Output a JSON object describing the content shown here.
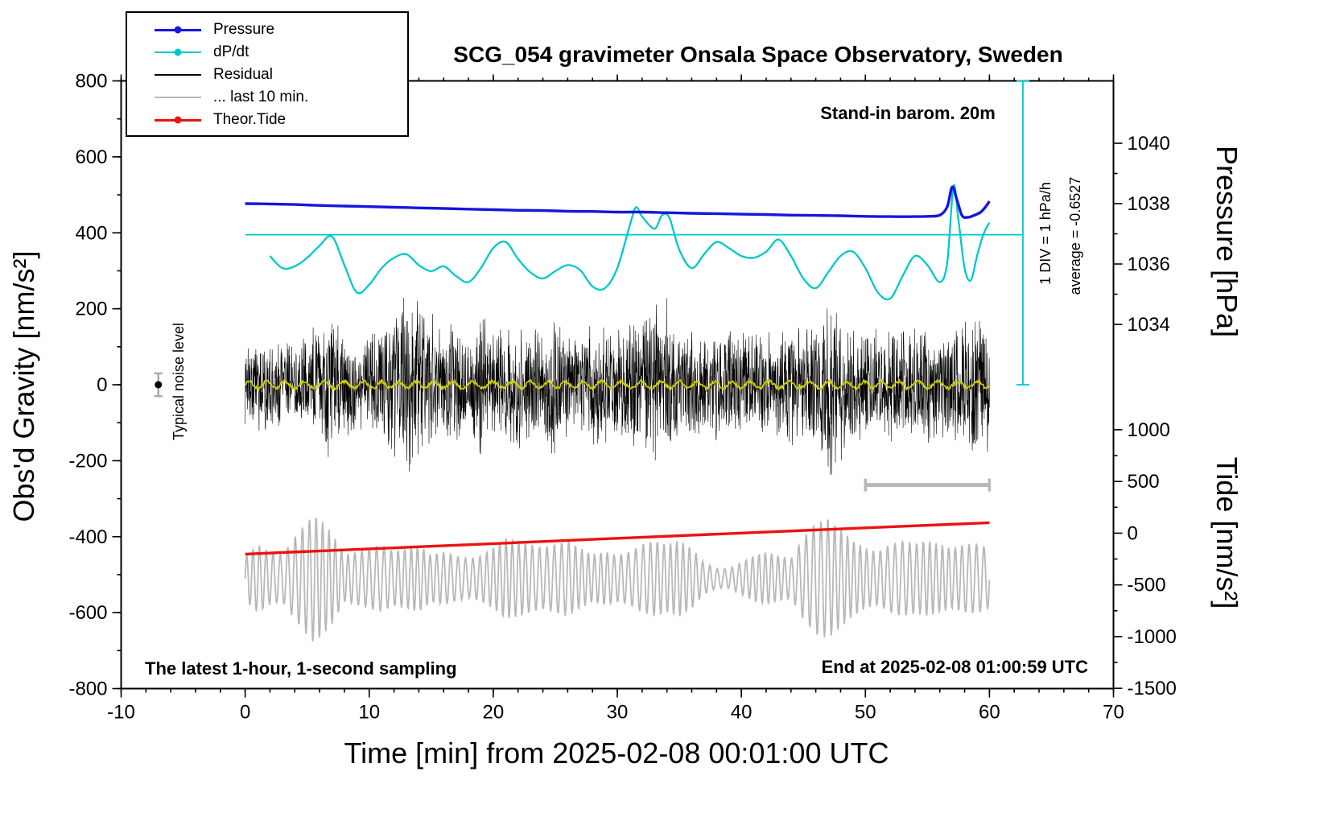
{
  "title": "SCG_054 gravimeter Onsala Space Observatory, Sweden",
  "xlabel": "Time [min] from 2025-02-08 00:01:00 UTC",
  "ylabel_left": "Obs'd Gravity [nm/s²]",
  "ylabel_pressure": "Pressure [hPa]",
  "ylabel_tide": "Tide [nm/s²]",
  "annotations": {
    "barom": "Stand-in barom. 20m",
    "div_scale": "1 DIV = 1 hPa/h",
    "average": "average = -0.6527",
    "noise_level": "Typical noise level",
    "sampling": "The latest 1-hour, 1-second sampling",
    "end_time": "End at 2025-02-08 01:00:59 UTC"
  },
  "legend": {
    "items": [
      {
        "label": "Pressure",
        "color": "#1616dd",
        "marker": true,
        "weight": 3
      },
      {
        "label": "dP/dt",
        "color": "#00c8c8",
        "marker": true,
        "weight": 2
      },
      {
        "label": "Residual",
        "color": "#000000",
        "marker": false,
        "weight": 2
      },
      {
        "label": "... last 10 min.",
        "color": "#b8b8b8",
        "marker": false,
        "weight": 2
      },
      {
        "label": "Theor.Tide",
        "color": "#ee1111",
        "marker": true,
        "weight": 3
      }
    ]
  },
  "chart_data": {
    "type": "line",
    "title": "SCG_054 gravimeter Onsala Space Observatory, Sweden",
    "xlabel": "Time [min] from 2025-02-08 00:01:00 UTC",
    "x_range": [
      -10,
      70
    ],
    "gravity_range": [
      -800,
      800
    ],
    "x_ticks": [
      -10,
      0,
      10,
      20,
      30,
      40,
      50,
      60,
      70
    ],
    "x_minor_step": 2,
    "gravity_ticks": [
      -800,
      -600,
      -400,
      -200,
      0,
      200,
      400,
      600,
      800
    ],
    "pressure_ticks": [
      1040,
      1038,
      1036,
      1034
    ],
    "pressure_minor_ticks": [
      1039,
      1037,
      1035
    ],
    "tide_ticks": [
      1000,
      500,
      0,
      -500,
      -1000,
      -1500
    ],
    "tide_minor_ticks": [
      750,
      250,
      -250,
      -750,
      -1250
    ],
    "average_dpdt_hpa_per_h": -0.6527,
    "dpdt_zero_gravity": 395,
    "dpdt_gravity_per_unit": 160,
    "dpdt_scale_bar_x": 62.7,
    "noise_seed": 20250208,
    "colors": {
      "pressure": "#1616dd",
      "dpdt": "#00c8c8",
      "residual": "#000000",
      "residual_filtered": "#cfcf00",
      "last10": "#b8b8b8",
      "tide": "#ee1111",
      "gray_bar": "#b8b8b8"
    },
    "series": {
      "pressure_hpa": [
        [
          0,
          1038.0
        ],
        [
          2,
          1037.99
        ],
        [
          4,
          1037.97
        ],
        [
          6,
          1037.94
        ],
        [
          8,
          1037.92
        ],
        [
          10,
          1037.9
        ],
        [
          12,
          1037.88
        ],
        [
          14,
          1037.86
        ],
        [
          16,
          1037.84
        ],
        [
          18,
          1037.82
        ],
        [
          20,
          1037.8
        ],
        [
          22,
          1037.78
        ],
        [
          24,
          1037.77
        ],
        [
          26,
          1037.75
        ],
        [
          28,
          1037.74
        ],
        [
          30,
          1037.72
        ],
        [
          32,
          1037.72
        ],
        [
          34,
          1037.7
        ],
        [
          36,
          1037.68
        ],
        [
          38,
          1037.67
        ],
        [
          40,
          1037.65
        ],
        [
          42,
          1037.64
        ],
        [
          44,
          1037.62
        ],
        [
          46,
          1037.61
        ],
        [
          48,
          1037.6
        ],
        [
          50,
          1037.58
        ],
        [
          52,
          1037.57
        ],
        [
          54,
          1037.57
        ],
        [
          55,
          1037.58
        ],
        [
          56,
          1037.62
        ],
        [
          56.6,
          1037.9
        ],
        [
          57,
          1038.55
        ],
        [
          57.4,
          1038.1
        ],
        [
          57.8,
          1037.6
        ],
        [
          58.3,
          1037.55
        ],
        [
          58.8,
          1037.62
        ],
        [
          59.3,
          1037.72
        ],
        [
          59.7,
          1037.9
        ],
        [
          60,
          1038.08
        ]
      ],
      "dpdt_hpa_per_h": [
        [
          2,
          -0.35
        ],
        [
          3,
          -0.55
        ],
        [
          4,
          -0.52
        ],
        [
          5,
          -0.38
        ],
        [
          6,
          -0.18
        ],
        [
          7,
          -0.03
        ],
        [
          8,
          -0.5
        ],
        [
          9,
          -0.95
        ],
        [
          10,
          -0.82
        ],
        [
          11,
          -0.55
        ],
        [
          12,
          -0.38
        ],
        [
          13,
          -0.32
        ],
        [
          14,
          -0.5
        ],
        [
          15,
          -0.6
        ],
        [
          16,
          -0.52
        ],
        [
          17,
          -0.68
        ],
        [
          18,
          -0.78
        ],
        [
          19,
          -0.55
        ],
        [
          20,
          -0.22
        ],
        [
          21,
          -0.12
        ],
        [
          22,
          -0.4
        ],
        [
          23,
          -0.62
        ],
        [
          24,
          -0.72
        ],
        [
          25,
          -0.6
        ],
        [
          26,
          -0.5
        ],
        [
          27,
          -0.58
        ],
        [
          28,
          -0.85
        ],
        [
          29,
          -0.88
        ],
        [
          30,
          -0.55
        ],
        [
          31,
          0.15
        ],
        [
          31.5,
          0.45
        ],
        [
          32,
          0.3
        ],
        [
          33,
          0.1
        ],
        [
          33.6,
          0.32
        ],
        [
          34.2,
          0.28
        ],
        [
          35,
          -0.25
        ],
        [
          36,
          -0.55
        ],
        [
          37,
          -0.32
        ],
        [
          38,
          -0.12
        ],
        [
          39,
          -0.22
        ],
        [
          40,
          -0.35
        ],
        [
          41,
          -0.38
        ],
        [
          42,
          -0.28
        ],
        [
          43,
          -0.08
        ],
        [
          44,
          -0.35
        ],
        [
          45,
          -0.72
        ],
        [
          46,
          -0.88
        ],
        [
          47,
          -0.62
        ],
        [
          48,
          -0.35
        ],
        [
          49,
          -0.28
        ],
        [
          50,
          -0.55
        ],
        [
          51,
          -0.95
        ],
        [
          52,
          -1.05
        ],
        [
          53,
          -0.68
        ],
        [
          54,
          -0.35
        ],
        [
          55,
          -0.5
        ],
        [
          56,
          -0.78
        ],
        [
          56.6,
          -0.45
        ],
        [
          57.1,
          0.8
        ],
        [
          57.5,
          0.25
        ],
        [
          58,
          -0.55
        ],
        [
          58.5,
          -0.75
        ],
        [
          59,
          -0.35
        ],
        [
          59.5,
          0.0
        ],
        [
          60,
          0.2
        ]
      ],
      "theor_tide_nms2": [
        [
          0,
          -202
        ],
        [
          10,
          -152
        ],
        [
          20,
          -101
        ],
        [
          30,
          -50
        ],
        [
          40,
          1
        ],
        [
          50,
          51
        ],
        [
          60,
          101
        ]
      ],
      "residual": {
        "center": 0,
        "dt": 0.02,
        "envelope": [
          [
            0,
            115
          ],
          [
            2,
            140
          ],
          [
            4,
            130
          ],
          [
            6,
            165
          ],
          [
            7,
            225
          ],
          [
            8,
            150
          ],
          [
            10,
            140
          ],
          [
            12,
            205
          ],
          [
            13,
            275
          ],
          [
            14,
            270
          ],
          [
            15,
            195
          ],
          [
            16,
            160
          ],
          [
            17,
            170
          ],
          [
            18,
            150
          ],
          [
            19,
            225
          ],
          [
            20,
            170
          ],
          [
            21,
            150
          ],
          [
            22,
            180
          ],
          [
            23,
            160
          ],
          [
            24,
            170
          ],
          [
            25,
            215
          ],
          [
            26,
            160
          ],
          [
            27,
            150
          ],
          [
            28,
            170
          ],
          [
            29,
            160
          ],
          [
            30,
            180
          ],
          [
            31,
            200
          ],
          [
            32,
            170
          ],
          [
            33,
            230
          ],
          [
            34,
            235
          ],
          [
            35,
            180
          ],
          [
            36,
            160
          ],
          [
            37,
            150
          ],
          [
            38,
            158
          ],
          [
            39,
            150
          ],
          [
            40,
            150
          ],
          [
            41,
            140
          ],
          [
            42,
            160
          ],
          [
            43,
            150
          ],
          [
            44,
            168
          ],
          [
            45,
            160
          ],
          [
            46,
            200
          ],
          [
            47,
            285
          ],
          [
            48,
            235
          ],
          [
            49,
            160
          ],
          [
            50,
            150
          ],
          [
            51,
            160
          ],
          [
            52,
            168
          ],
          [
            53,
            150
          ],
          [
            54,
            160
          ],
          [
            55,
            168
          ],
          [
            56,
            150
          ],
          [
            57,
            140
          ],
          [
            58,
            180
          ],
          [
            59,
            200
          ],
          [
            60,
            185
          ]
        ]
      },
      "residual_filtered": {
        "amplitude": 9,
        "period": 1.5,
        "noise": 4
      },
      "last10": {
        "center": -510,
        "period": 0.55,
        "dt": 0.05,
        "envelope": [
          [
            0,
            60
          ],
          [
            1,
            90
          ],
          [
            2,
            70
          ],
          [
            3,
            62
          ],
          [
            4,
            110
          ],
          [
            5,
            150
          ],
          [
            5.5,
            168
          ],
          [
            6,
            158
          ],
          [
            7,
            120
          ],
          [
            8,
            62
          ],
          [
            9,
            70
          ],
          [
            10,
            80
          ],
          [
            11,
            88
          ],
          [
            12,
            72
          ],
          [
            13,
            80
          ],
          [
            14,
            88
          ],
          [
            15,
            62
          ],
          [
            16,
            70
          ],
          [
            17,
            60
          ],
          [
            18,
            52
          ],
          [
            19,
            60
          ],
          [
            20,
            80
          ],
          [
            21,
            108
          ],
          [
            22,
            100
          ],
          [
            23,
            90
          ],
          [
            24,
            80
          ],
          [
            25,
            90
          ],
          [
            26,
            100
          ],
          [
            27,
            80
          ],
          [
            28,
            62
          ],
          [
            29,
            70
          ],
          [
            30,
            62
          ],
          [
            31,
            70
          ],
          [
            32,
            90
          ],
          [
            33,
            100
          ],
          [
            34,
            90
          ],
          [
            35,
            100
          ],
          [
            36,
            80
          ],
          [
            37,
            42
          ],
          [
            38,
            26
          ],
          [
            39,
            26
          ],
          [
            40,
            42
          ],
          [
            41,
            60
          ],
          [
            42,
            70
          ],
          [
            43,
            60
          ],
          [
            44,
            52
          ],
          [
            45,
            108
          ],
          [
            46,
            148
          ],
          [
            47,
            158
          ],
          [
            48,
            130
          ],
          [
            49,
            100
          ],
          [
            50,
            80
          ],
          [
            51,
            70
          ],
          [
            52,
            90
          ],
          [
            53,
            100
          ],
          [
            54,
            92
          ],
          [
            55,
            100
          ],
          [
            56,
            90
          ],
          [
            57,
            80
          ],
          [
            58,
            90
          ],
          [
            59,
            92
          ],
          [
            60,
            80
          ]
        ]
      }
    },
    "scale_bar": {
      "x1": 50,
      "x2": 60,
      "gravity": -264
    },
    "noise_marker": {
      "x": -7,
      "gravity": 0,
      "err": 30
    }
  }
}
